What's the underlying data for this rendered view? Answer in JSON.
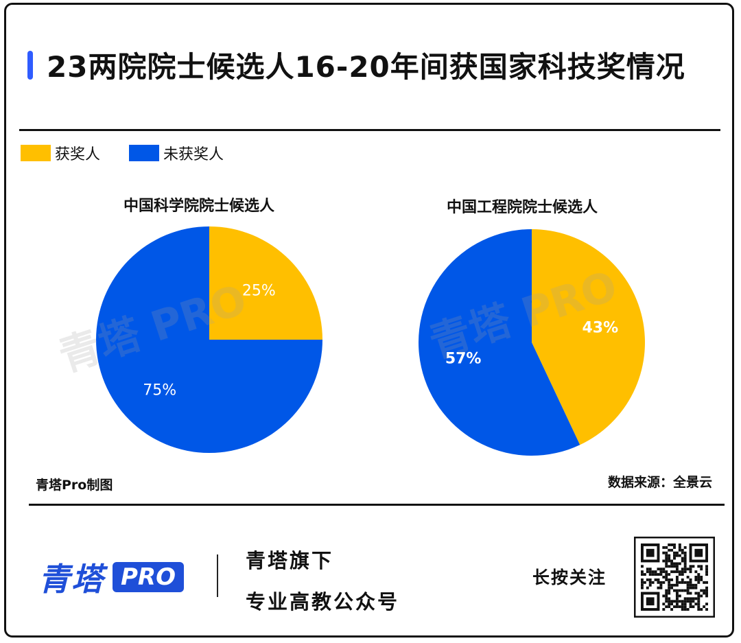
{
  "title": "23两院院士候选人16-20年间获国家科技奖情况",
  "legend": {
    "items": [
      {
        "label": "获奖人",
        "color": "#ffbf00"
      },
      {
        "label": "未获奖人",
        "color": "#0057e7"
      }
    ]
  },
  "colors": {
    "awarded": "#ffbf00",
    "not_awarded": "#0057e7",
    "title_accent": "#2f5cff",
    "brand_blue": "#1f4fd8"
  },
  "chart_data": [
    {
      "type": "pie",
      "title": "中国科学院院士候选人",
      "slices": [
        {
          "label": "获奖人",
          "value": 25,
          "display": "25%"
        },
        {
          "label": "未获奖人",
          "value": 75,
          "display": "75%"
        }
      ]
    },
    {
      "type": "pie",
      "title": "中国工程院院士候选人",
      "slices": [
        {
          "label": "获奖人",
          "value": 43,
          "display": "43%"
        },
        {
          "label": "未获奖人",
          "value": 57,
          "display": "57%"
        }
      ]
    }
  ],
  "footer": {
    "credit": "青塔Pro制图",
    "source": "数据来源：全景云",
    "brand_cn": "青塔",
    "brand_pro": "PRO",
    "tagline1": "青塔旗下",
    "tagline2": "专业高教公众号",
    "follow": "长按关注"
  }
}
